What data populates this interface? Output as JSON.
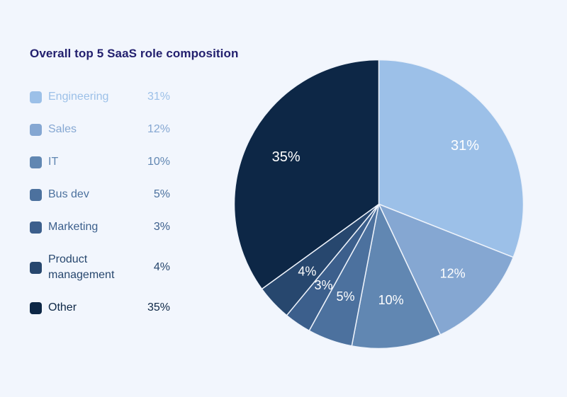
{
  "title": "Overall top 5 SaaS role composition",
  "background_color": "#f2f6fd",
  "title_color": "#23206e",
  "chart_data": {
    "type": "pie",
    "title": "Overall top 5 SaaS role composition",
    "labels": [
      "Engineering",
      "Sales",
      "IT",
      "Bus dev",
      "Marketing",
      "Product management",
      "Other"
    ],
    "values": [
      31,
      12,
      10,
      5,
      3,
      4,
      35
    ],
    "value_labels": [
      "31%",
      "12%",
      "10%",
      "5%",
      "3%",
      "4%",
      "35%"
    ],
    "colors": [
      "#9cc0e8",
      "#85a7d2",
      "#6187b2",
      "#4c719e",
      "#3c5f8c",
      "#27476e",
      "#0d2746"
    ],
    "slice_label_color": "#ffffff",
    "slice_border_color": "#eef3fb",
    "start_position": "12-oclock",
    "direction": "clockwise",
    "legend_position": "left",
    "legend_value_alignment": "right"
  }
}
